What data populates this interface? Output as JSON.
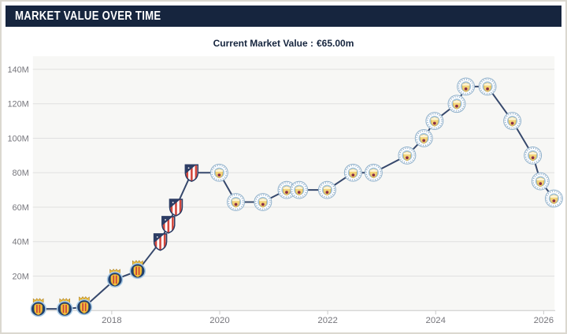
{
  "header": {
    "title": "MARKET VALUE OVER TIME"
  },
  "subtitle": {
    "label": "Current Market Value :",
    "value": "€65.00m"
  },
  "colors": {
    "header_bg": "#16253e",
    "header_text": "#ffffff",
    "subtitle_text": "#16253e",
    "frame_border": "#dbd8d0",
    "plot_bg": "#f7f7f5",
    "gridline": "#e0e0e0",
    "axis": "#c8c8c8",
    "tick_label": "#76767c",
    "line": "#36486c",
    "crest_villarreal_yellow": "#f2c23e",
    "crest_atletico_red": "#d4473c",
    "crest_atletico_navy": "#2d3d64",
    "crest_city_blue": "#a7c8e1",
    "crest_city_gold": "#f3d579",
    "crest_city_maroon": "#8c2e45"
  },
  "chart_data": {
    "type": "line",
    "title": "MARKET VALUE OVER TIME",
    "xlabel": "",
    "ylabel": "",
    "grid": true,
    "legend": false,
    "x_ticks": [
      2018,
      2020,
      2022,
      2024,
      2026
    ],
    "y_ticks": [
      {
        "value": 20,
        "label": "20M"
      },
      {
        "value": 40,
        "label": "40M"
      },
      {
        "value": 60,
        "label": "60M"
      },
      {
        "value": 80,
        "label": "80M"
      },
      {
        "value": 100,
        "label": "100M"
      },
      {
        "value": 120,
        "label": "120M"
      },
      {
        "value": 140,
        "label": "140M"
      }
    ],
    "xlim": [
      2016.54,
      2026.2
    ],
    "ylim": [
      0,
      147.6
    ],
    "value_unit": "€ million",
    "clubs": {
      "villarreal": "Villarreal CF",
      "atletico": "Atlético de Madrid",
      "mancity": "Manchester City"
    },
    "series": [
      {
        "name": "Market value",
        "points": [
          {
            "date": 2016.64,
            "value": 1,
            "club": "villarreal"
          },
          {
            "date": 2017.13,
            "value": 1,
            "club": "villarreal"
          },
          {
            "date": 2017.49,
            "value": 2,
            "club": "villarreal"
          },
          {
            "date": 2018.06,
            "value": 18,
            "club": "villarreal"
          },
          {
            "date": 2018.48,
            "value": 23,
            "club": "villarreal"
          },
          {
            "date": 2018.9,
            "value": 40,
            "club": "atletico"
          },
          {
            "date": 2019.05,
            "value": 50,
            "club": "atletico"
          },
          {
            "date": 2019.19,
            "value": 60,
            "club": "atletico"
          },
          {
            "date": 2019.48,
            "value": 80,
            "club": "atletico"
          },
          {
            "date": 2019.99,
            "value": 80,
            "club": "mancity"
          },
          {
            "date": 2020.3,
            "value": 63,
            "club": "mancity"
          },
          {
            "date": 2020.8,
            "value": 63,
            "club": "mancity"
          },
          {
            "date": 2021.24,
            "value": 70,
            "club": "mancity"
          },
          {
            "date": 2021.47,
            "value": 70,
            "club": "mancity"
          },
          {
            "date": 2021.99,
            "value": 70,
            "club": "mancity"
          },
          {
            "date": 2022.47,
            "value": 80,
            "club": "mancity"
          },
          {
            "date": 2022.85,
            "value": 80,
            "club": "mancity"
          },
          {
            "date": 2023.47,
            "value": 90,
            "club": "mancity"
          },
          {
            "date": 2023.78,
            "value": 100,
            "club": "mancity"
          },
          {
            "date": 2023.98,
            "value": 110,
            "club": "mancity"
          },
          {
            "date": 2024.39,
            "value": 120,
            "club": "mancity"
          },
          {
            "date": 2024.56,
            "value": 130,
            "club": "mancity"
          },
          {
            "date": 2024.96,
            "value": 130,
            "club": "mancity"
          },
          {
            "date": 2025.42,
            "value": 110,
            "club": "mancity"
          },
          {
            "date": 2025.8,
            "value": 90,
            "club": "mancity"
          },
          {
            "date": 2025.94,
            "value": 75,
            "club": "mancity"
          },
          {
            "date": 2026.19,
            "value": 65,
            "club": "mancity"
          }
        ]
      }
    ]
  }
}
